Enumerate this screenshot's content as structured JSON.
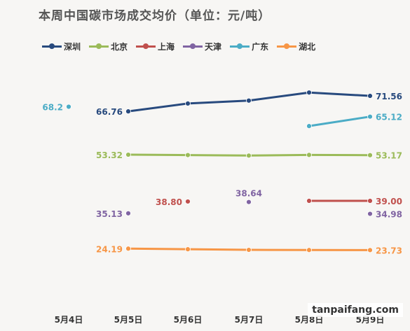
{
  "title": "本周中国碳市场成交均价（单位：元/吨）",
  "watermark": "tanpaifang.com",
  "chart_data": {
    "type": "line",
    "title": "本周中国碳市场成交均价（单位：元/吨）",
    "xlabel": "",
    "ylabel": "",
    "categories": [
      "5月4日",
      "5月5日",
      "5月6日",
      "5月7日",
      "5月8日",
      "5月9日"
    ],
    "grid": false,
    "legend_position": "top-left",
    "series": [
      {
        "name": "深圳",
        "color": "#284a7e",
        "values": [
          null,
          66.76,
          69.2,
          70.1,
          72.6,
          71.56
        ],
        "labels": [
          null,
          "66.76",
          null,
          null,
          null,
          "71.56"
        ]
      },
      {
        "name": "北京",
        "color": "#9bbb59",
        "values": [
          null,
          53.32,
          53.2,
          53.05,
          53.25,
          53.17
        ],
        "labels": [
          null,
          "53.32",
          null,
          null,
          null,
          "53.17"
        ]
      },
      {
        "name": "上海",
        "color": "#c0504d",
        "values": [
          null,
          null,
          38.8,
          null,
          39.0,
          39.0
        ],
        "labels": [
          null,
          null,
          "38.80",
          null,
          null,
          "39.00"
        ]
      },
      {
        "name": "天津",
        "color": "#8064a2",
        "values": [
          null,
          35.13,
          null,
          38.64,
          null,
          34.98
        ],
        "labels": [
          null,
          "35.13",
          null,
          "38.64",
          null,
          "34.98"
        ]
      },
      {
        "name": "广东",
        "color": "#4bacc6",
        "values": [
          68.2,
          null,
          null,
          null,
          62.2,
          65.12
        ],
        "labels": [
          "68.2",
          null,
          null,
          null,
          null,
          "65.12"
        ]
      },
      {
        "name": "湖北",
        "color": "#f79646",
        "values": [
          null,
          24.19,
          24.0,
          23.8,
          23.75,
          23.73
        ],
        "labels": [
          null,
          "24.19",
          null,
          null,
          null,
          "23.73"
        ]
      }
    ]
  }
}
